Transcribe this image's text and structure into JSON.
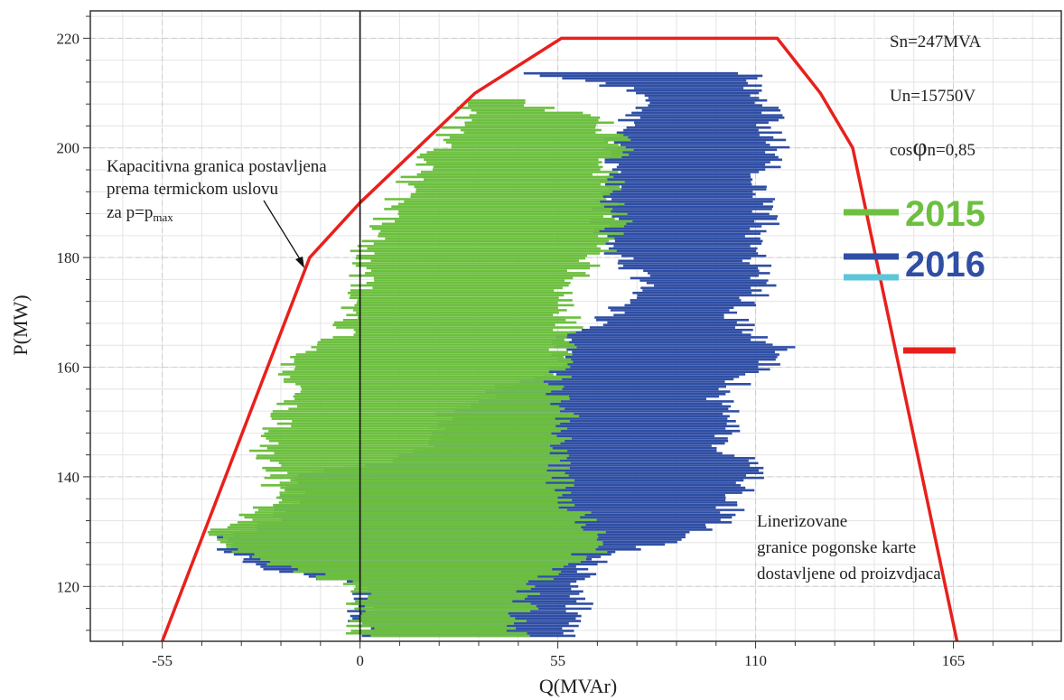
{
  "chart_data": {
    "type": "line",
    "xlabel": "Q(MVAr)",
    "ylabel": "P(MW)",
    "xlim": [
      -75,
      195
    ],
    "ylim": [
      110,
      225
    ],
    "x_ticks": [
      "-55",
      "0",
      "55",
      "110",
      "165"
    ],
    "y_ticks": [
      "120",
      "140",
      "160",
      "180",
      "200",
      "220"
    ],
    "grid": true,
    "params": {
      "sn": "Sn=247MVA",
      "un": "Un=15750V",
      "cos_prefix": "cos",
      "cos_phi": "φ",
      "cos_suffix": "n=0,85"
    },
    "annotations": {
      "capacitive": {
        "line1": "Kapacitivna granica postavljena",
        "line2": "prema termickom uslovu",
        "line3_prefix": "za p=p",
        "line3_sub": "max"
      },
      "linearized": {
        "line1": "Linerizovane",
        "line2": "granice pogonske karte",
        "line3": "dostavljene od proizvdjaca"
      }
    },
    "legend": [
      {
        "label": "2015",
        "color": "#6cbf3f"
      },
      {
        "label": "2016",
        "color": "#2f4ea4"
      }
    ],
    "boundary": {
      "color": "#e8201c",
      "points": [
        [
          -55,
          110
        ],
        [
          -14,
          180
        ],
        [
          0,
          190
        ],
        [
          32,
          210
        ],
        [
          56,
          220
        ],
        [
          116,
          220
        ],
        [
          128,
          210
        ],
        [
          137,
          200
        ],
        [
          166,
          110
        ]
      ]
    },
    "series_2015": {
      "color": "#6cbf3f",
      "profile": [
        [
          111,
          45
        ],
        [
          120,
          46
        ],
        [
          125,
          60
        ],
        [
          128,
          70
        ],
        [
          132,
          63
        ],
        [
          137,
          55
        ],
        [
          144,
          56
        ],
        [
          150,
          57
        ],
        [
          156,
          55
        ],
        [
          160,
          56
        ],
        [
          163,
          56
        ],
        [
          166,
          58
        ],
        [
          171,
          57
        ],
        [
          176,
          59
        ],
        [
          181,
          67
        ],
        [
          186,
          72
        ],
        [
          190,
          70
        ],
        [
          195,
          69
        ],
        [
          200,
          72
        ],
        [
          205,
          68
        ],
        [
          209,
          40
        ]
      ],
      "left": [
        [
          111,
          0
        ],
        [
          120,
          0
        ],
        [
          125,
          -30
        ],
        [
          130,
          -40
        ],
        [
          135,
          -25
        ],
        [
          140,
          -23
        ],
        [
          145,
          -27
        ],
        [
          150,
          -22
        ],
        [
          155,
          -20
        ],
        [
          160,
          -20
        ],
        [
          163,
          -15
        ],
        [
          166,
          -5
        ],
        [
          170,
          -2
        ],
        [
          175,
          0
        ],
        [
          180,
          0
        ],
        [
          185,
          5
        ],
        [
          190,
          10
        ],
        [
          195,
          15
        ],
        [
          200,
          22
        ],
        [
          205,
          28
        ],
        [
          209,
          30
        ]
      ]
    },
    "series_2016": {
      "color": "#2f4ea4",
      "profile": [
        [
          111,
          60
        ],
        [
          115,
          60
        ],
        [
          120,
          62
        ],
        [
          125,
          65
        ],
        [
          129,
          90
        ],
        [
          132,
          104
        ],
        [
          135,
          103
        ],
        [
          140,
          110
        ],
        [
          142,
          113
        ],
        [
          145,
          102
        ],
        [
          150,
          102
        ],
        [
          155,
          100
        ],
        [
          160,
          112
        ],
        [
          163,
          120
        ],
        [
          166,
          108
        ],
        [
          170,
          104
        ],
        [
          175,
          113
        ],
        [
          180,
          110
        ],
        [
          185,
          112
        ],
        [
          190,
          114
        ],
        [
          195,
          112
        ],
        [
          200,
          117
        ],
        [
          205,
          114
        ],
        [
          210,
          112
        ],
        [
          214,
          108
        ]
      ],
      "left": [
        [
          111,
          0
        ],
        [
          120,
          0
        ],
        [
          124,
          -30
        ],
        [
          128,
          -40
        ],
        [
          131,
          -28
        ],
        [
          135,
          -20
        ],
        [
          140,
          -15
        ],
        [
          145,
          20
        ],
        [
          150,
          20
        ],
        [
          155,
          35
        ],
        [
          160,
          57
        ],
        [
          165,
          57
        ],
        [
          170,
          70
        ],
        [
          175,
          80
        ],
        [
          180,
          72
        ],
        [
          185,
          68
        ],
        [
          190,
          68
        ],
        [
          195,
          70
        ],
        [
          200,
          70
        ],
        [
          205,
          75
        ],
        [
          210,
          80
        ],
        [
          214,
          46
        ]
      ]
    }
  }
}
